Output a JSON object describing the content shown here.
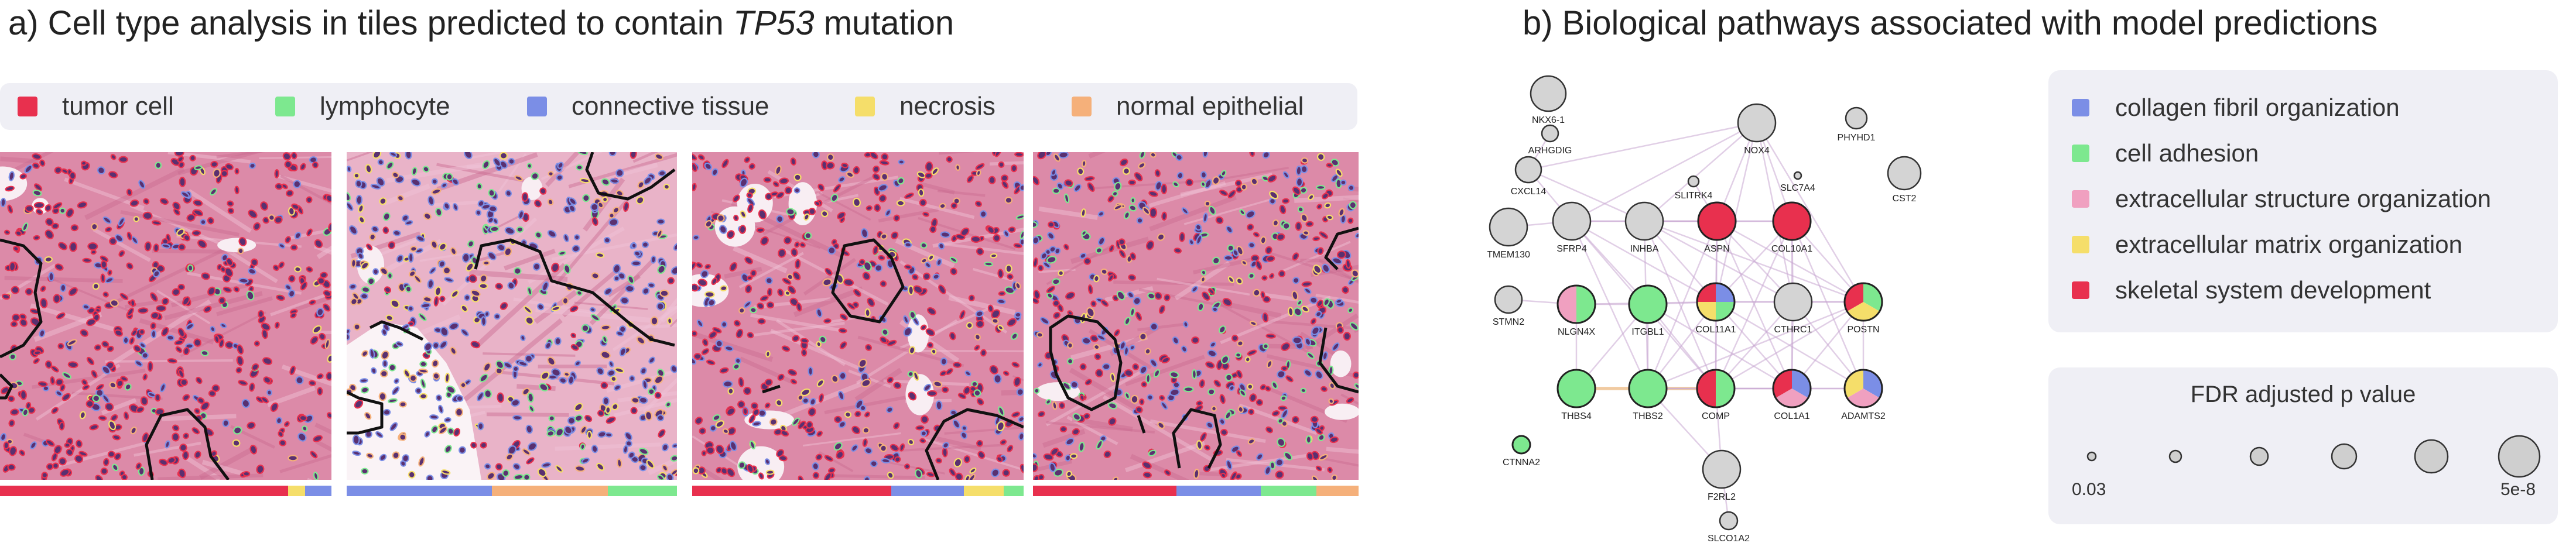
{
  "panel_a": {
    "title_prefix": "a) Cell type analysis in tiles predicted to contain ",
    "title_gene": "TP53",
    "title_suffix": " mutation",
    "legend": [
      {
        "label": "tumor cell",
        "color": "#e8304e"
      },
      {
        "label": "lymphocyte",
        "color": "#7de88f"
      },
      {
        "label": "connective tissue",
        "color": "#7b8ee6"
      },
      {
        "label": "necrosis",
        "color": "#f5de6a"
      },
      {
        "label": "normal epithelial",
        "color": "#f5b07a"
      }
    ],
    "tiles": [
      {
        "bar": [
          {
            "cell": "tumor cell",
            "fraction": 0.87
          },
          {
            "cell": "necrosis",
            "fraction": 0.05
          },
          {
            "cell": "connective tissue",
            "fraction": 0.08
          }
        ]
      },
      {
        "bar": [
          {
            "cell": "connective tissue",
            "fraction": 0.44
          },
          {
            "cell": "normal epithelial",
            "fraction": 0.35
          },
          {
            "cell": "lymphocyte",
            "fraction": 0.21
          }
        ]
      },
      {
        "bar": [
          {
            "cell": "tumor cell",
            "fraction": 0.6
          },
          {
            "cell": "connective tissue",
            "fraction": 0.22
          },
          {
            "cell": "necrosis",
            "fraction": 0.12
          },
          {
            "cell": "lymphocyte",
            "fraction": 0.06
          }
        ]
      },
      {
        "bar": [
          {
            "cell": "tumor cell",
            "fraction": 0.44
          },
          {
            "cell": "connective tissue",
            "fraction": 0.26
          },
          {
            "cell": "lymphocyte",
            "fraction": 0.17
          },
          {
            "cell": "normal epithelial",
            "fraction": 0.13
          }
        ]
      }
    ]
  },
  "panel_b": {
    "title": "b) Biological pathways associated with model predictions",
    "pathways": [
      {
        "label": "collagen fibril organization",
        "color": "#7b8ee6"
      },
      {
        "label": "cell adhesion",
        "color": "#7de88f"
      },
      {
        "label": "extracellular structure organization",
        "color": "#f0a0c0"
      },
      {
        "label": "extracellular matrix organization",
        "color": "#f5de6a"
      },
      {
        "label": "skeletal system development",
        "color": "#e8304e"
      }
    ],
    "pvalue_legend": {
      "title": "FDR adjusted p value",
      "min_label": "0.03",
      "max_label": "5e-8"
    },
    "genes": [
      {
        "name": "NKX6-1",
        "pathways": []
      },
      {
        "name": "ARHGDIG",
        "pathways": []
      },
      {
        "name": "CXCL14",
        "pathways": []
      },
      {
        "name": "NOX4",
        "pathways": []
      },
      {
        "name": "PHYHD1",
        "pathways": []
      },
      {
        "name": "SLITRK4",
        "pathways": []
      },
      {
        "name": "SLC7A4",
        "pathways": []
      },
      {
        "name": "CST2",
        "pathways": []
      },
      {
        "name": "TMEM130",
        "pathways": []
      },
      {
        "name": "SFRP4",
        "pathways": []
      },
      {
        "name": "INHBA",
        "pathways": []
      },
      {
        "name": "ASPN",
        "pathways": [
          "skeletal system development"
        ]
      },
      {
        "name": "COL10A1",
        "pathways": [
          "skeletal system development"
        ]
      },
      {
        "name": "STMN2",
        "pathways": []
      },
      {
        "name": "NLGN4X",
        "pathways": [
          "cell adhesion",
          "extracellular structure organization"
        ]
      },
      {
        "name": "ITGBL1",
        "pathways": [
          "cell adhesion"
        ]
      },
      {
        "name": "COL11A1",
        "pathways": [
          "collagen fibril organization",
          "cell adhesion",
          "extracellular matrix organization",
          "skeletal system development"
        ]
      },
      {
        "name": "CTHRC1",
        "pathways": []
      },
      {
        "name": "POSTN",
        "pathways": [
          "cell adhesion",
          "extracellular matrix organization",
          "skeletal system development"
        ]
      },
      {
        "name": "THBS4",
        "pathways": [
          "cell adhesion"
        ]
      },
      {
        "name": "THBS2",
        "pathways": [
          "cell adhesion"
        ]
      },
      {
        "name": "COMP",
        "pathways": [
          "cell adhesion",
          "skeletal system development"
        ]
      },
      {
        "name": "COL1A1",
        "pathways": [
          "collagen fibril organization",
          "extracellular structure organization",
          "skeletal system development"
        ]
      },
      {
        "name": "ADAMTS2",
        "pathways": [
          "collagen fibril organization",
          "extracellular structure organization",
          "extracellular matrix organization"
        ]
      },
      {
        "name": "CTNNA2",
        "pathways": [
          "cell adhesion"
        ]
      },
      {
        "name": "F2RL2",
        "pathways": []
      },
      {
        "name": "SLCO1A2",
        "pathways": []
      }
    ]
  }
}
